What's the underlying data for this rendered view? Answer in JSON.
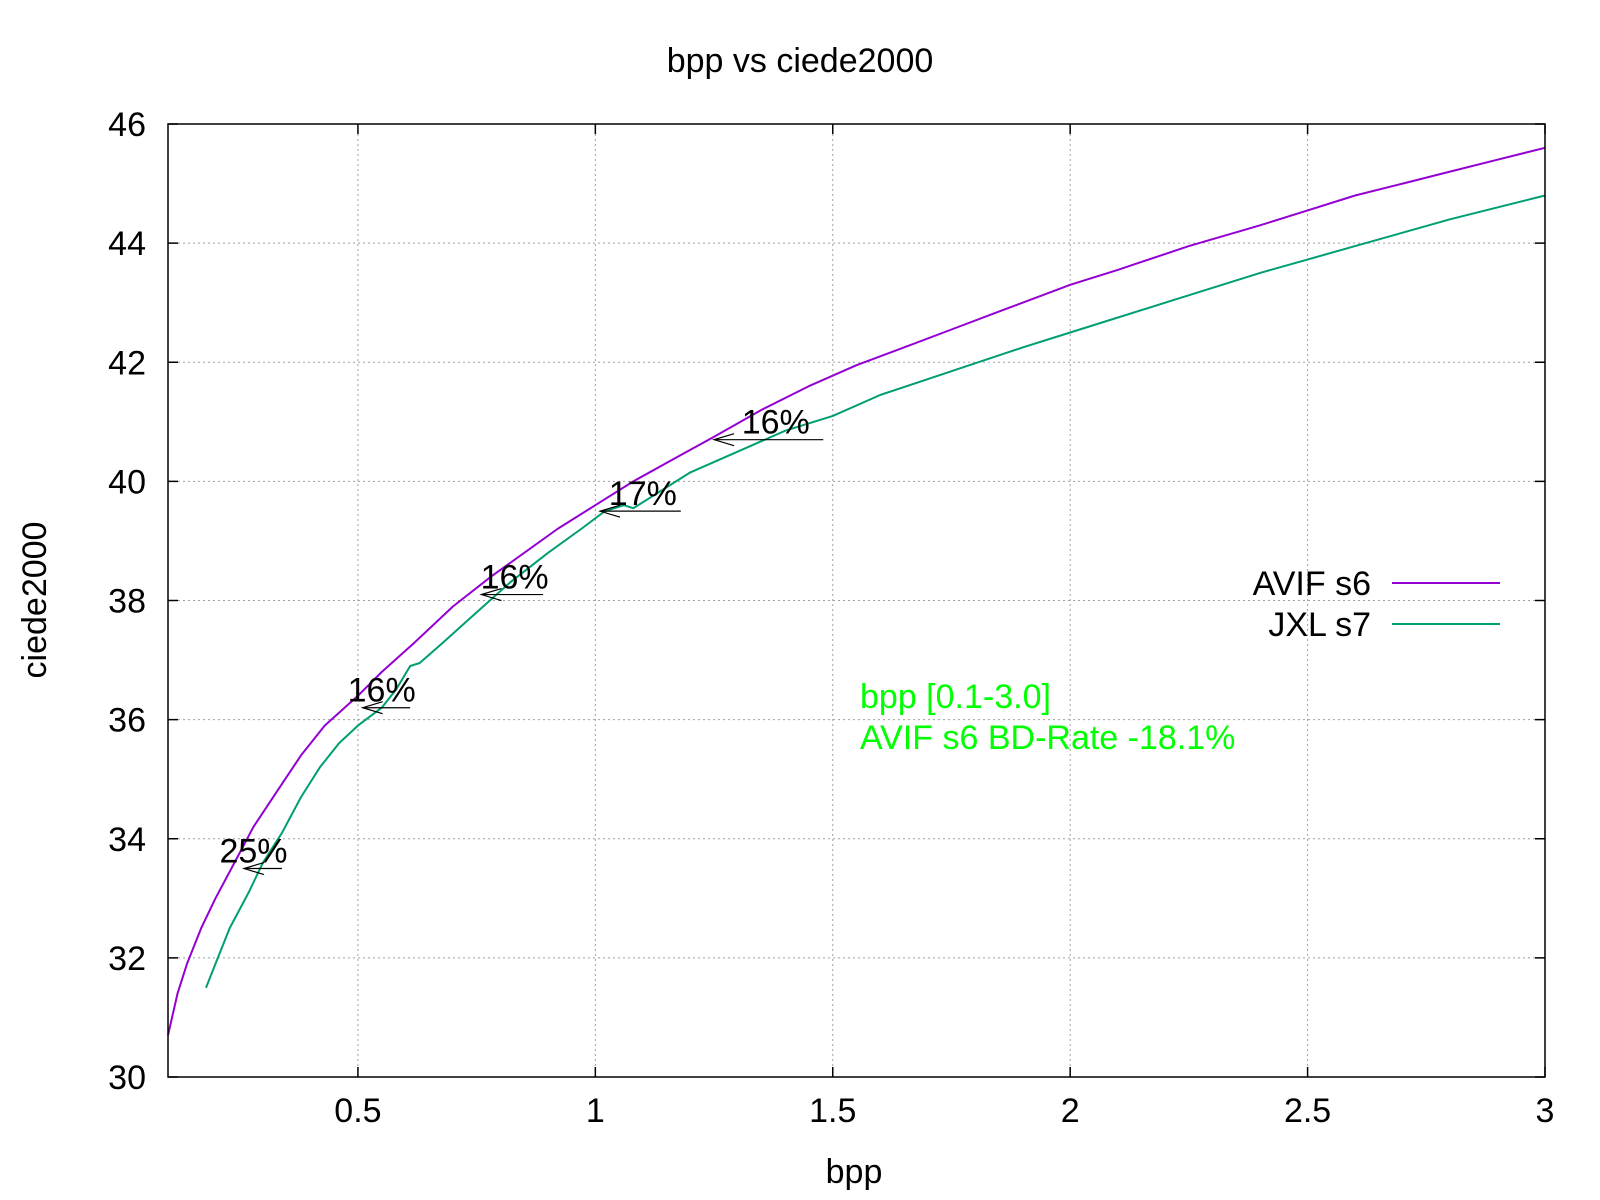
{
  "chart_data": {
    "type": "line",
    "title": "bpp vs ciede2000",
    "xlabel": "bpp",
    "ylabel": "ciede2000",
    "xlim": [
      0.1,
      3.0
    ],
    "ylim": [
      30,
      46
    ],
    "xticks": [
      0.5,
      1,
      1.5,
      2,
      2.5,
      3
    ],
    "xtick_labels": [
      "0.5",
      "1",
      "1.5",
      "2",
      "2.5",
      "3"
    ],
    "yticks": [
      30,
      32,
      34,
      36,
      38,
      40,
      42,
      44,
      46
    ],
    "ytick_labels": [
      "30",
      "32",
      "34",
      "36",
      "38",
      "40",
      "42",
      "44",
      "46"
    ],
    "grid": true,
    "legend_position": "right",
    "series": [
      {
        "name": "AVIF s6",
        "color": "#9400d3",
        "x": [
          0.1,
          0.12,
          0.14,
          0.17,
          0.2,
          0.24,
          0.28,
          0.33,
          0.38,
          0.43,
          0.5,
          0.55,
          0.62,
          0.7,
          0.78,
          0.85,
          0.92,
          1.0,
          1.08,
          1.17,
          1.25,
          1.35,
          1.45,
          1.55,
          1.65,
          1.75,
          1.85,
          2.0,
          2.1,
          2.25,
          2.4,
          2.5,
          2.6,
          2.7,
          2.8,
          2.9,
          3.0
        ],
        "y": [
          30.7,
          31.4,
          31.9,
          32.5,
          33.0,
          33.6,
          34.2,
          34.8,
          35.4,
          35.9,
          36.4,
          36.8,
          37.3,
          37.9,
          38.4,
          38.8,
          39.2,
          39.6,
          40.0,
          40.4,
          40.75,
          41.2,
          41.6,
          41.95,
          42.25,
          42.55,
          42.85,
          43.3,
          43.55,
          43.95,
          44.3,
          44.55,
          44.8,
          45.0,
          45.2,
          45.4,
          45.6
        ]
      },
      {
        "name": "JXL s7",
        "color": "#009e73",
        "x": [
          0.18,
          0.2,
          0.23,
          0.27,
          0.3,
          0.34,
          0.38,
          0.42,
          0.46,
          0.5,
          0.55,
          0.58,
          0.61,
          0.63,
          0.68,
          0.75,
          0.82,
          0.9,
          0.97,
          1.02,
          1.06,
          1.08,
          1.12,
          1.2,
          1.3,
          1.4,
          1.5,
          1.6,
          1.75,
          1.9,
          2.0,
          2.2,
          2.4,
          2.6,
          2.8,
          3.0
        ],
        "y": [
          31.5,
          31.9,
          32.5,
          33.1,
          33.6,
          34.1,
          34.7,
          35.2,
          35.6,
          35.9,
          36.2,
          36.5,
          36.9,
          36.95,
          37.3,
          37.8,
          38.3,
          38.8,
          39.2,
          39.5,
          39.6,
          39.55,
          39.75,
          40.15,
          40.5,
          40.85,
          41.1,
          41.45,
          41.85,
          42.25,
          42.5,
          43.0,
          43.5,
          43.95,
          44.4,
          44.8
        ]
      }
    ],
    "annotations": [
      {
        "text": "25%",
        "x": 0.28,
        "y": 33.5,
        "arrow_from_x": 0.34,
        "arrow_to_x": 0.26
      },
      {
        "text": "16%",
        "x": 0.55,
        "y": 36.2,
        "arrow_from_x": 0.61,
        "arrow_to_x": 0.51
      },
      {
        "text": "16%",
        "x": 0.83,
        "y": 38.1,
        "arrow_from_x": 0.89,
        "arrow_to_x": 0.76
      },
      {
        "text": "17%",
        "x": 1.1,
        "y": 39.5,
        "arrow_from_x": 1.18,
        "arrow_to_x": 1.01
      },
      {
        "text": "16%",
        "x": 1.38,
        "y": 40.7,
        "arrow_from_x": 1.48,
        "arrow_to_x": 1.25
      }
    ],
    "info_text": [
      "bpp [0.1-3.0]",
      "AVIF s6 BD-Rate -18.1%"
    ],
    "info_color": "#00ff00"
  }
}
